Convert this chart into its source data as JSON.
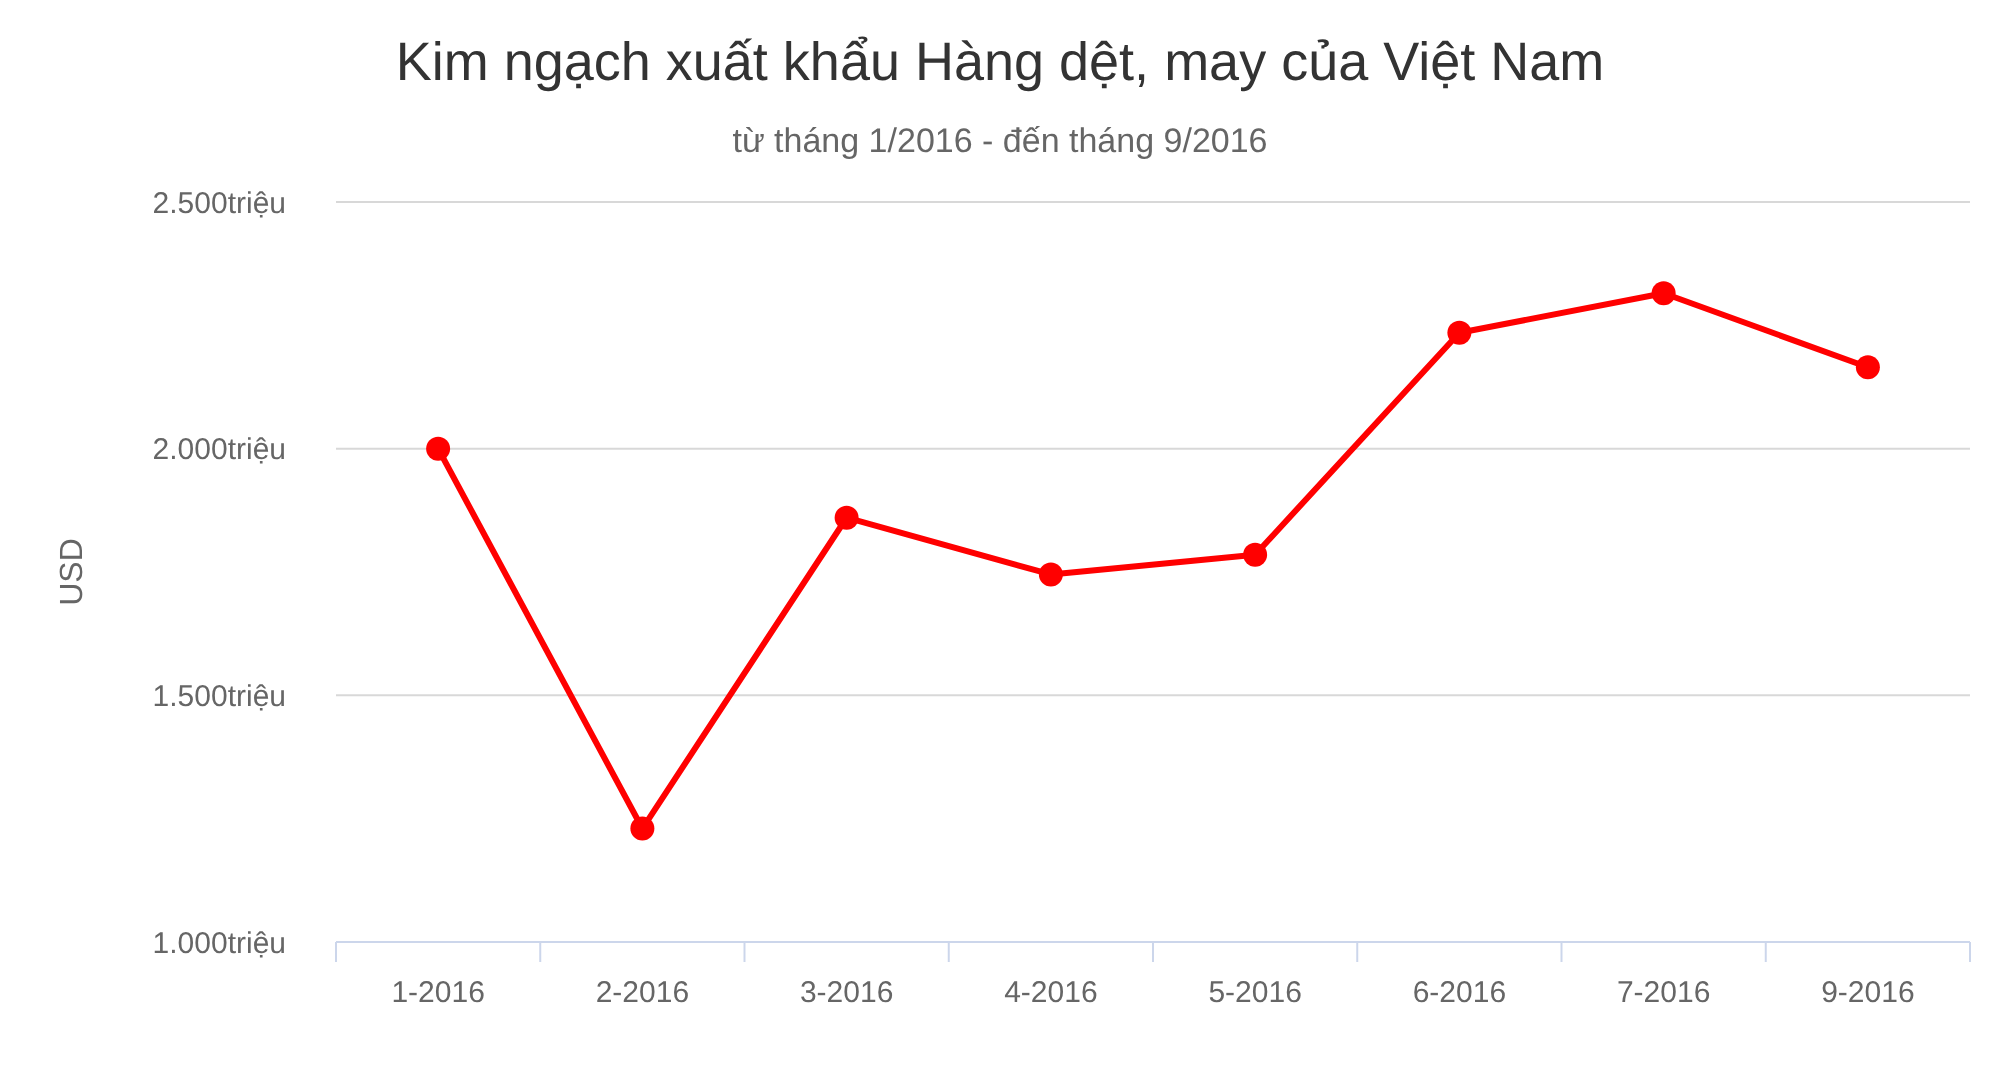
{
  "chart_data": {
    "type": "line",
    "title": "Kim ngạch xuất khẩu Hàng dệt, may của Việt Nam",
    "subtitle": "từ tháng 1/2016 - đến tháng 9/2016",
    "ylabel": "USD",
    "categories": [
      "1-2016",
      "2-2016",
      "3-2016",
      "4-2016",
      "5-2016",
      "6-2016",
      "7-2016",
      "9-2016"
    ],
    "series": [
      {
        "color": "#ff0000",
        "values": [
          2000,
          1230,
          1860,
          1745,
          1785,
          2235,
          2315,
          2165
        ]
      }
    ],
    "ylim": [
      1000,
      2500
    ],
    "yticks": [
      {
        "value": 1000,
        "label": "1.000triệu"
      },
      {
        "value": 1500,
        "label": "1.500triệu"
      },
      {
        "value": 2000,
        "label": "2.000triệu"
      },
      {
        "value": 2500,
        "label": "2.500triệu"
      }
    ],
    "grid": "y",
    "marker": "circle",
    "line_style": "solid"
  }
}
